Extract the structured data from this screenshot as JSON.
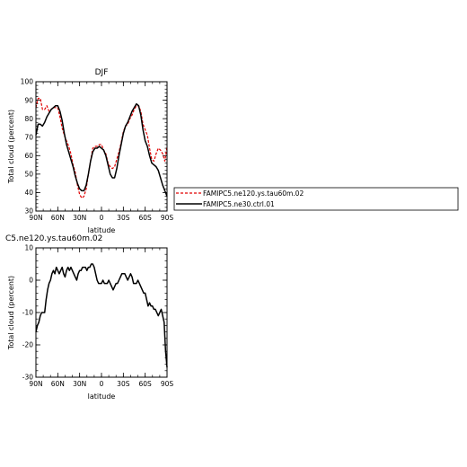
{
  "chart_data": [
    {
      "type": "line",
      "title": "DJF",
      "xlabel": "latitude",
      "ylabel": "Total cloud (percent)",
      "xlim": [
        90,
        -90
      ],
      "ylim": [
        30,
        100
      ],
      "x_ticks": [
        {
          "value": 90,
          "label": "90N"
        },
        {
          "value": 60,
          "label": "60N"
        },
        {
          "value": 30,
          "label": "30N"
        },
        {
          "value": 0,
          "label": "0"
        },
        {
          "value": -30,
          "label": "30S"
        },
        {
          "value": -60,
          "label": "60S"
        },
        {
          "value": -90,
          "label": "90S"
        }
      ],
      "y_ticks": [
        30,
        40,
        50,
        60,
        70,
        80,
        90,
        100
      ],
      "legend": "right",
      "series": [
        {
          "name": "FAMIPC5.ne120.ys.tau60m.02",
          "color": "#e00000",
          "dash": "dashed",
          "x": [
            90,
            87,
            84,
            81,
            78,
            75,
            72,
            69,
            66,
            63,
            60,
            57,
            54,
            51,
            48,
            45,
            42,
            39,
            36,
            33,
            30,
            27,
            24,
            21,
            18,
            15,
            12,
            9,
            6,
            3,
            0,
            -3,
            -6,
            -9,
            -12,
            -15,
            -18,
            -21,
            -24,
            -27,
            -30,
            -33,
            -36,
            -39,
            -42,
            -45,
            -48,
            -51,
            -54,
            -57,
            -60,
            -63,
            -66,
            -69,
            -72,
            -75,
            -78,
            -81,
            -84,
            -87,
            -90
          ],
          "y": [
            86,
            91,
            91,
            85,
            85,
            87,
            84,
            85,
            86,
            86,
            86,
            81,
            75,
            71,
            68,
            65,
            61,
            55,
            51,
            44,
            39,
            37,
            38,
            42,
            50,
            57,
            64,
            65,
            65,
            66,
            66,
            63,
            61,
            56,
            54,
            53,
            54,
            58,
            62,
            67,
            73,
            76,
            77,
            80,
            82,
            85,
            87,
            87,
            84,
            77,
            74,
            71,
            64,
            58,
            57,
            61,
            64,
            63,
            61,
            57,
            65
          ]
        },
        {
          "name": "FAMIPC5.ne30.ctrl.01",
          "color": "#000000",
          "dash": "solid",
          "x": [
            90,
            87,
            84,
            81,
            78,
            75,
            72,
            69,
            66,
            63,
            60,
            57,
            54,
            51,
            48,
            45,
            42,
            39,
            36,
            33,
            30,
            27,
            24,
            21,
            18,
            15,
            12,
            9,
            6,
            3,
            0,
            -3,
            -6,
            -9,
            -12,
            -15,
            -18,
            -21,
            -24,
            -27,
            -30,
            -33,
            -36,
            -39,
            -42,
            -45,
            -48,
            -51,
            -54,
            -57,
            -60,
            -63,
            -66,
            -69,
            -72,
            -75,
            -78,
            -81,
            -84,
            -87,
            -90
          ],
          "y": [
            71,
            77,
            77,
            76,
            78,
            81,
            83,
            85,
            86,
            87,
            87,
            84,
            79,
            72,
            66,
            62,
            58,
            54,
            49,
            45,
            42,
            41,
            41,
            44,
            50,
            57,
            62,
            64,
            64,
            65,
            64,
            63,
            60,
            55,
            50,
            48,
            48,
            53,
            60,
            66,
            72,
            76,
            78,
            81,
            84,
            86,
            88,
            87,
            82,
            74,
            68,
            65,
            60,
            56,
            55,
            54,
            52,
            48,
            44,
            41,
            38
          ]
        }
      ]
    },
    {
      "type": "line",
      "title": "C5.ne120.ys.tau60m.02",
      "xlabel": "latitude",
      "ylabel": "Total cloud (percent)",
      "xlim": [
        90,
        -90
      ],
      "ylim": [
        -30,
        10
      ],
      "x_ticks": [
        {
          "value": 90,
          "label": "90N"
        },
        {
          "value": 60,
          "label": "60N"
        },
        {
          "value": 30,
          "label": "30N"
        },
        {
          "value": 0,
          "label": "0"
        },
        {
          "value": -30,
          "label": "30S"
        },
        {
          "value": -60,
          "label": "60S"
        },
        {
          "value": -90,
          "label": "90S"
        }
      ],
      "y_ticks": [
        -30,
        -20,
        -10,
        0,
        10
      ],
      "series": [
        {
          "color": "#000000",
          "dash": "solid",
          "x": [
            90,
            88,
            86,
            84,
            82,
            80,
            78,
            76,
            74,
            72,
            70,
            68,
            66,
            64,
            62,
            60,
            58,
            56,
            54,
            52,
            50,
            48,
            46,
            44,
            42,
            40,
            38,
            36,
            34,
            32,
            30,
            28,
            26,
            24,
            22,
            20,
            18,
            16,
            14,
            12,
            10,
            8,
            6,
            4,
            2,
            0,
            -2,
            -4,
            -6,
            -8,
            -10,
            -12,
            -14,
            -16,
            -18,
            -20,
            -22,
            -24,
            -26,
            -28,
            -30,
            -32,
            -34,
            -36,
            -38,
            -40,
            -42,
            -44,
            -46,
            -48,
            -50,
            -52,
            -54,
            -56,
            -58,
            -60,
            -62,
            -64,
            -66,
            -68,
            -70,
            -72,
            -74,
            -76,
            -78,
            -80,
            -82,
            -84,
            -86,
            -88,
            -90
          ],
          "y": [
            -16,
            -14,
            -13,
            -11,
            -10,
            -10,
            -10,
            -6,
            -3,
            -1,
            0,
            2,
            3,
            2,
            4,
            3,
            2,
            3,
            4,
            2,
            1,
            3,
            4,
            3,
            4,
            3,
            2,
            1,
            0,
            2,
            3,
            3,
            4,
            4,
            4,
            3,
            4,
            4,
            5,
            5,
            4,
            2,
            0,
            -1,
            -1,
            -1,
            0,
            -1,
            -1,
            -1,
            0,
            -1,
            -2,
            -3,
            -2,
            -1,
            -1,
            0,
            1,
            2,
            2,
            2,
            1,
            0,
            1,
            2,
            1,
            -1,
            -1,
            -1,
            0,
            -1,
            -2,
            -3,
            -4,
            -4,
            -6,
            -8,
            -7,
            -8,
            -8,
            -9,
            -9,
            -10,
            -11,
            -10,
            -9,
            -11,
            -13,
            -22,
            -27
          ]
        }
      ]
    }
  ]
}
